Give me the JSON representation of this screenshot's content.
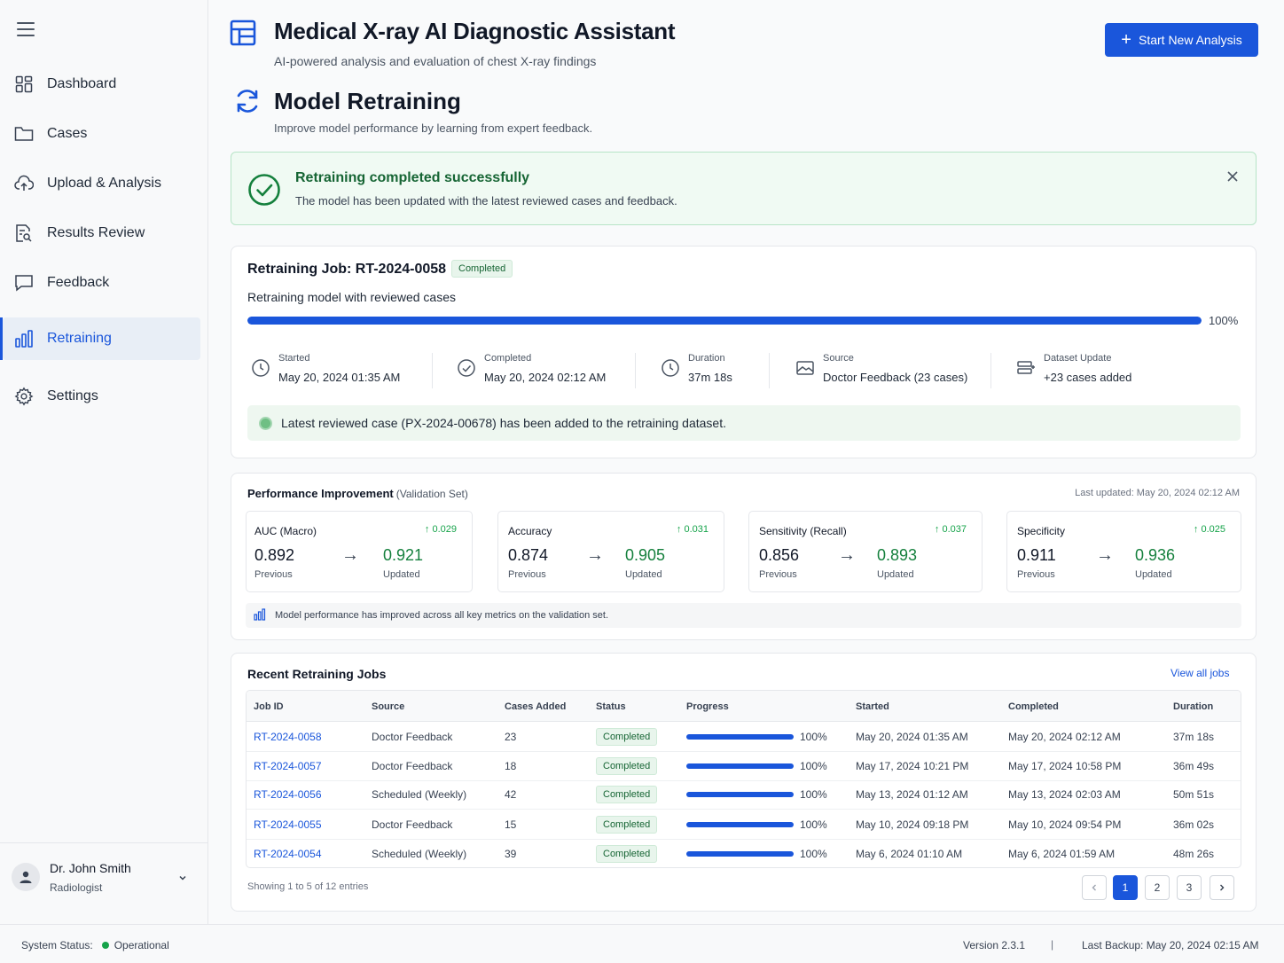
{
  "app": {
    "title": "Medical X-ray AI Diagnostic Assistant",
    "subtitle": "AI-powered analysis and evaluation of chest X-ray findings",
    "start_button": "Start New Analysis",
    "accent": "#1a56db"
  },
  "sidebar": {
    "items": [
      {
        "label": "Dashboard",
        "icon": "dashboard-grid-icon"
      },
      {
        "label": "Cases",
        "icon": "folder-icon"
      },
      {
        "label": "Upload & Analysis",
        "icon": "cloud-upload-icon"
      },
      {
        "label": "Results Review",
        "icon": "document-search-icon"
      },
      {
        "label": "Feedback",
        "icon": "chat-bubble-icon"
      },
      {
        "label": "Retraining",
        "icon": "bar-chart-icon",
        "active": true
      },
      {
        "label": "Settings",
        "icon": "gear-icon"
      }
    ],
    "user": {
      "name": "Dr. John Smith",
      "role": "Radiologist"
    }
  },
  "page": {
    "title": "Model Retraining",
    "subtitle": "Improve model performance by learning from expert feedback."
  },
  "alert": {
    "title": "Retraining completed successfully",
    "text": "The model has been updated with the latest reviewed cases and feedback."
  },
  "job": {
    "title": "Retraining Job: RT-2024-0058",
    "status": "Completed",
    "description": "Retraining model with reviewed cases",
    "progress": 100,
    "progress_label": "100%",
    "meta": [
      {
        "label": "Started",
        "value": "May 20, 2024 01:35 AM",
        "icon": "clock-icon"
      },
      {
        "label": "Completed",
        "value": "May 20, 2024 02:12 AM",
        "icon": "check-circle-icon"
      },
      {
        "label": "Duration",
        "value": "37m 18s",
        "icon": "clock-icon"
      },
      {
        "label": "Source",
        "value": "Doctor Feedback (23 cases)",
        "icon": "image-icon"
      },
      {
        "label": "Dataset Update",
        "value": "+23 cases added",
        "icon": "database-icon"
      }
    ],
    "info": "Latest reviewed case (PX-2024-00678) has been added to the retraining dataset."
  },
  "performance": {
    "title": "Performance Improvement",
    "title_sub": "(Validation Set)",
    "last_updated": "Last updated: May 20, 2024 02:12 AM",
    "prev_label": "Previous",
    "new_label": "Updated",
    "metrics": [
      {
        "name": "AUC (Macro)",
        "delta": "↑ 0.029",
        "previous": "0.892",
        "updated": "0.921"
      },
      {
        "name": "Accuracy",
        "delta": "↑ 0.031",
        "previous": "0.874",
        "updated": "0.905"
      },
      {
        "name": "Sensitivity (Recall)",
        "delta": "↑ 0.037",
        "previous": "0.856",
        "updated": "0.893"
      },
      {
        "name": "Specificity",
        "delta": "↑ 0.025",
        "previous": "0.911",
        "updated": "0.936"
      }
    ],
    "note": "Model performance has improved across all key metrics on the validation set."
  },
  "jobs": {
    "title": "Recent Retraining Jobs",
    "view_all": "View all jobs",
    "columns": [
      "Job ID",
      "Source",
      "Cases Added",
      "Status",
      "Progress",
      "Started",
      "Completed",
      "Duration"
    ],
    "rows": [
      {
        "id": "RT-2024-0058",
        "source": "Doctor Feedback",
        "cases": "23",
        "status": "Completed",
        "progress": 100,
        "progress_label": "100%",
        "started": "May 20, 2024 01:35 AM",
        "completed": "May 20, 2024 02:12 AM",
        "duration": "37m 18s"
      },
      {
        "id": "RT-2024-0057",
        "source": "Doctor Feedback",
        "cases": "18",
        "status": "Completed",
        "progress": 100,
        "progress_label": "100%",
        "started": "May 17, 2024 10:21 PM",
        "completed": "May 17, 2024 10:58 PM",
        "duration": "36m 49s"
      },
      {
        "id": "RT-2024-0056",
        "source": "Scheduled (Weekly)",
        "cases": "42",
        "status": "Completed",
        "progress": 100,
        "progress_label": "100%",
        "started": "May 13, 2024 01:12 AM",
        "completed": "May 13, 2024 02:03 AM",
        "duration": "50m 51s"
      },
      {
        "id": "RT-2024-0055",
        "source": "Doctor Feedback",
        "cases": "15",
        "status": "Completed",
        "progress": 100,
        "progress_label": "100%",
        "started": "May 10, 2024 09:18 PM",
        "completed": "May 10, 2024 09:54 PM",
        "duration": "36m 02s"
      },
      {
        "id": "RT-2024-0054",
        "source": "Scheduled (Weekly)",
        "cases": "39",
        "status": "Completed",
        "progress": 100,
        "progress_label": "100%",
        "started": "May 6, 2024 01:10 AM",
        "completed": "May 6, 2024 01:59 AM",
        "duration": "48m 26s"
      }
    ],
    "showing": "Showing 1 to 5 of 12 entries",
    "pages": [
      "1",
      "2",
      "3"
    ],
    "current_page": "1"
  },
  "footer": {
    "status_label": "System Status:",
    "status_value": "Operational",
    "version": "Version 2.3.1",
    "separator": "|",
    "backup": "Last Backup: May 20, 2024 02:15 AM"
  }
}
